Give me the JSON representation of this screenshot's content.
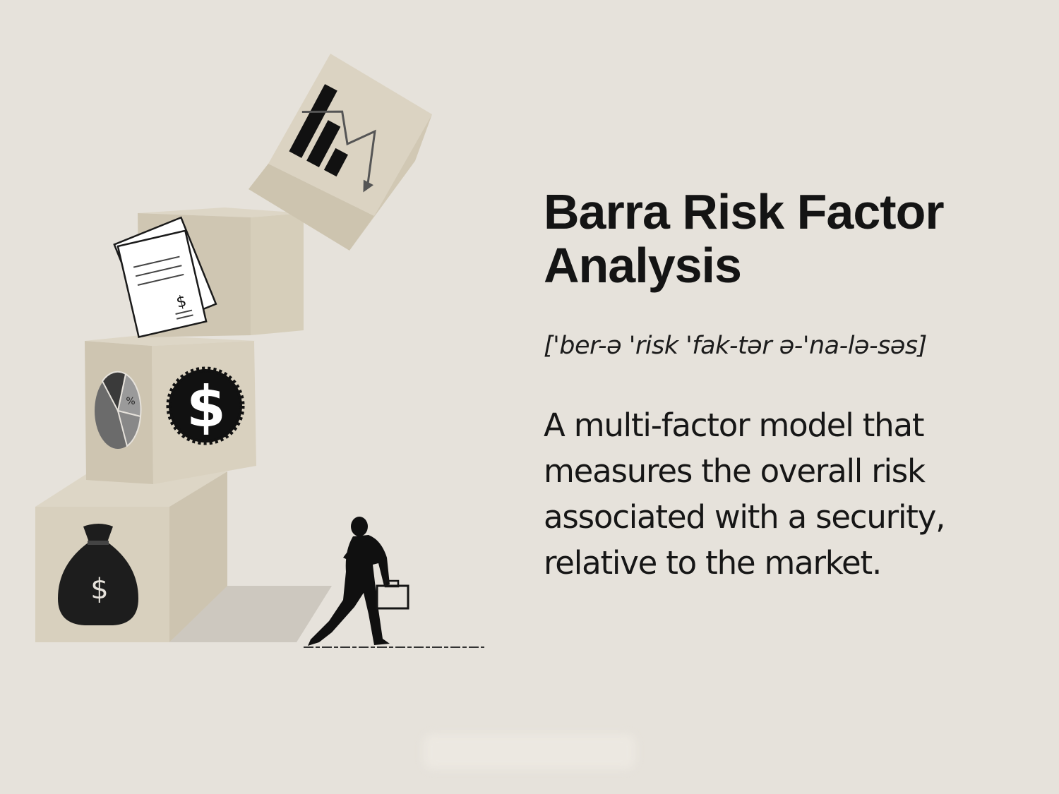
{
  "title": "Barra Risk Factor Analysis",
  "pronunciation": "['ber-ə 'risk 'fak-tər ə-'na-lə-səs]",
  "definition": "A multi-factor model that measures the overall risk associated with a security, relative to the market.",
  "illustration": {
    "icons": [
      "money-bag-icon",
      "pie-chart-icon",
      "dollar-gear-icon",
      "documents-icon",
      "bar-chart-down-icon",
      "businesswoman-figure"
    ],
    "money_bag_symbol": "$",
    "gear_symbol": "$",
    "document_symbol": "$",
    "pie_label": "%"
  },
  "colors": {
    "background": "#e6e2db",
    "box_face": "#d7cfbd",
    "box_side": "#cfc6b2",
    "box_top": "#ddd6c6",
    "ink": "#141414"
  }
}
